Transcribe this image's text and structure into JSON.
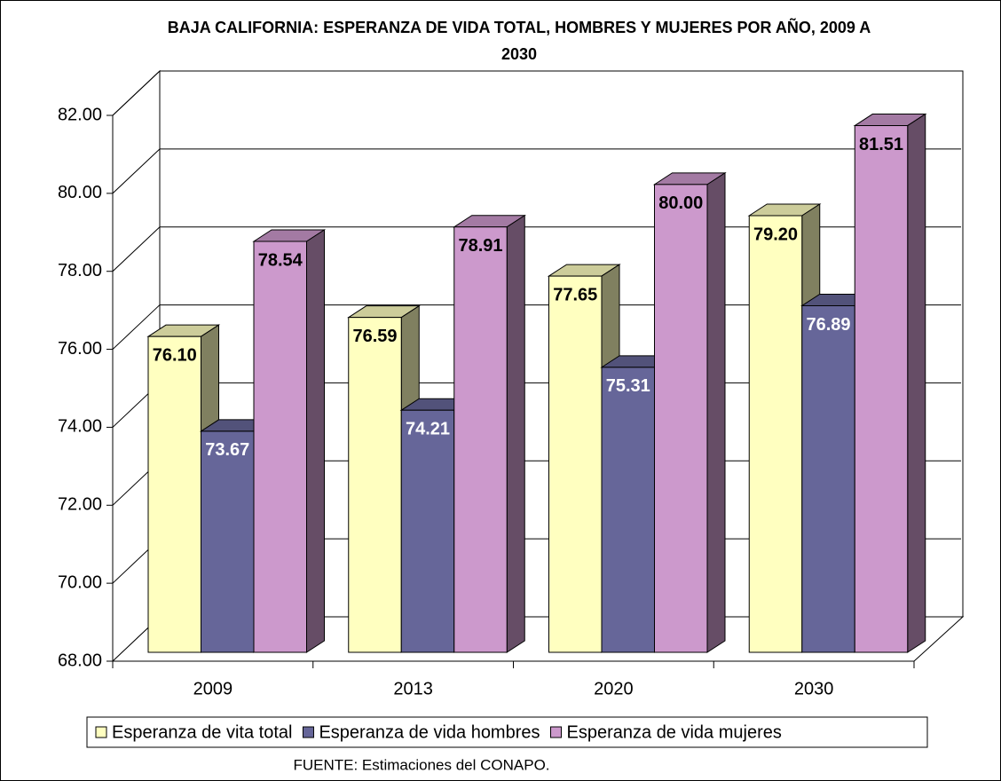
{
  "chart_data": {
    "type": "bar3d",
    "title": "BAJA CALIFORNIA: ESPERANZA DE VIDA TOTAL, HOMBRES Y MUJERES POR AÑO, 2009 A 2030",
    "categories": [
      "2009",
      "2013",
      "2020",
      "2030"
    ],
    "series": [
      {
        "name": "Esperanza de vita total",
        "color": "#ffffc0",
        "values": [
          76.1,
          76.59,
          77.65,
          79.2
        ],
        "value_labels": [
          "76.10",
          "76.59",
          "77.65",
          "79.20"
        ]
      },
      {
        "name": "Esperanza de vida hombres",
        "color": "#666699",
        "values": [
          73.67,
          74.21,
          75.31,
          76.89
        ],
        "value_labels": [
          "73.67",
          "74.21",
          "75.31",
          "76.89"
        ]
      },
      {
        "name": "Esperanza de vida mujeres",
        "color": "#cc99cc",
        "values": [
          78.54,
          78.91,
          80.0,
          81.51
        ],
        "value_labels": [
          "78.54",
          "78.91",
          "80.00",
          "81.51"
        ]
      }
    ],
    "ylim": [
      68,
      82
    ],
    "yticks": [
      {
        "value": 68,
        "label": "68.00"
      },
      {
        "value": 70,
        "label": "70.00"
      },
      {
        "value": 72,
        "label": "72.00"
      },
      {
        "value": 74,
        "label": "74.00"
      },
      {
        "value": 76,
        "label": "76.00"
      },
      {
        "value": 78,
        "label": "78.00"
      },
      {
        "value": 80,
        "label": "80.00"
      },
      {
        "value": 82,
        "label": "82.00"
      }
    ],
    "grid": true,
    "legend": "bottom",
    "source": "FUENTE: Estimaciones del CONAPO."
  }
}
